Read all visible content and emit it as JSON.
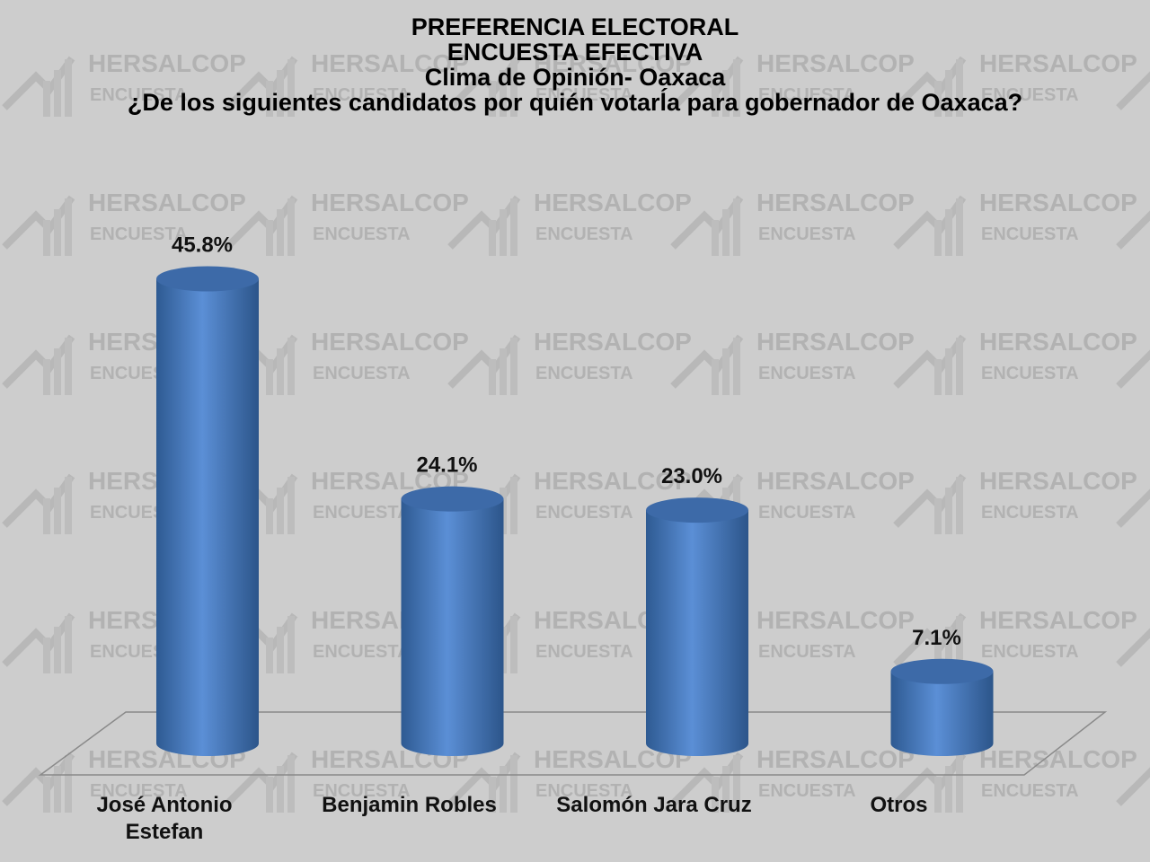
{
  "chart_data": {
    "type": "bar3d",
    "title": [
      "PREFERENCIA ELECTORAL",
      "ENCUESTA EFECTIVA",
      "Clima de Opinión- Oaxaca",
      "¿De los siguientes candidatos por quién votarĺa para gobernador de Oaxaca?"
    ],
    "categories": [
      "José Antonio Estefan",
      "Benjamin Robles",
      "Salomón Jara Cruz",
      "Otros"
    ],
    "values": [
      45.8,
      24.1,
      23.0,
      7.1
    ],
    "value_labels": [
      "45.8%",
      "24.1%",
      "23.0%",
      "7.1%"
    ],
    "color": "#4f81bd"
  },
  "watermark": {
    "name": "HERSALCOP",
    "sub": "ENCUESTA"
  }
}
